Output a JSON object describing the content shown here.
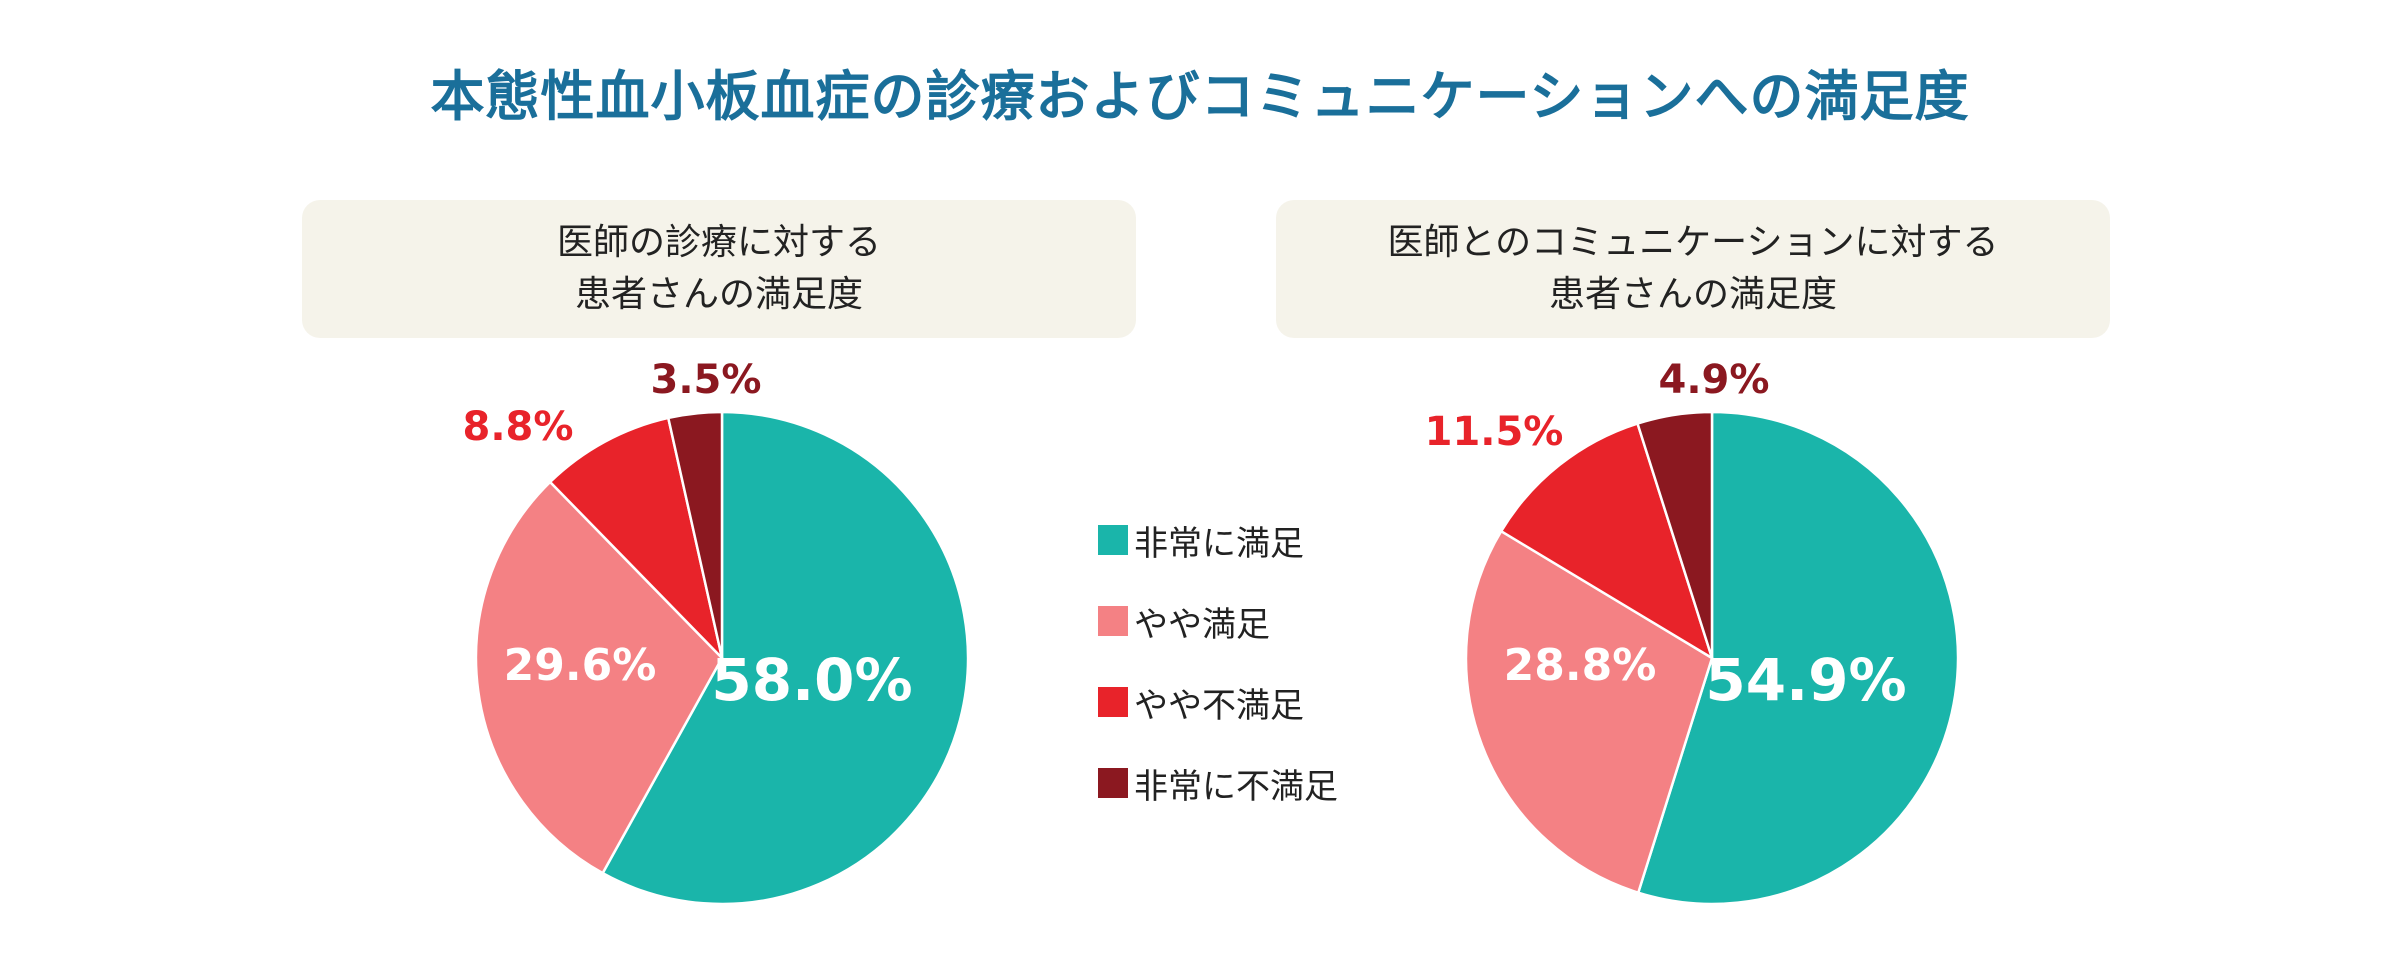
{
  "title": "本態性血小板血症の診療およびコミュニケーションへの満足度",
  "colors": {
    "very_satisfied": "#1ab5aa",
    "somewhat_satisfied": "#f48184",
    "somewhat_dissatisfied": "#e8232a",
    "very_dissatisfied": "#8b1820",
    "title": "#1a6f9a"
  },
  "legend": [
    {
      "label": "非常に満足",
      "color": "#1ab5aa"
    },
    {
      "label": "やや満足",
      "color": "#f48184"
    },
    {
      "label": "やや不満足",
      "color": "#e8232a"
    },
    {
      "label": "非常に不満足",
      "color": "#8b1820"
    }
  ],
  "chart_data": [
    {
      "type": "pie",
      "title_lines": [
        "医師の診療に対する",
        "患者さんの満足度"
      ],
      "categories": [
        "非常に満足",
        "やや満足",
        "やや不満足",
        "非常に不満足"
      ],
      "values": [
        58.0,
        29.6,
        8.8,
        3.5
      ],
      "labels": [
        "58.0%",
        "29.6%",
        "8.8%",
        "3.5%"
      ]
    },
    {
      "type": "pie",
      "title_lines": [
        "医師とのコミュニケーションに対する",
        "患者さんの満足度"
      ],
      "categories": [
        "非常に満足",
        "やや満足",
        "やや不満足",
        "非常に不満足"
      ],
      "values": [
        54.9,
        28.8,
        11.5,
        4.9
      ],
      "labels": [
        "54.9%",
        "28.8%",
        "11.5%",
        "4.9%"
      ]
    }
  ]
}
